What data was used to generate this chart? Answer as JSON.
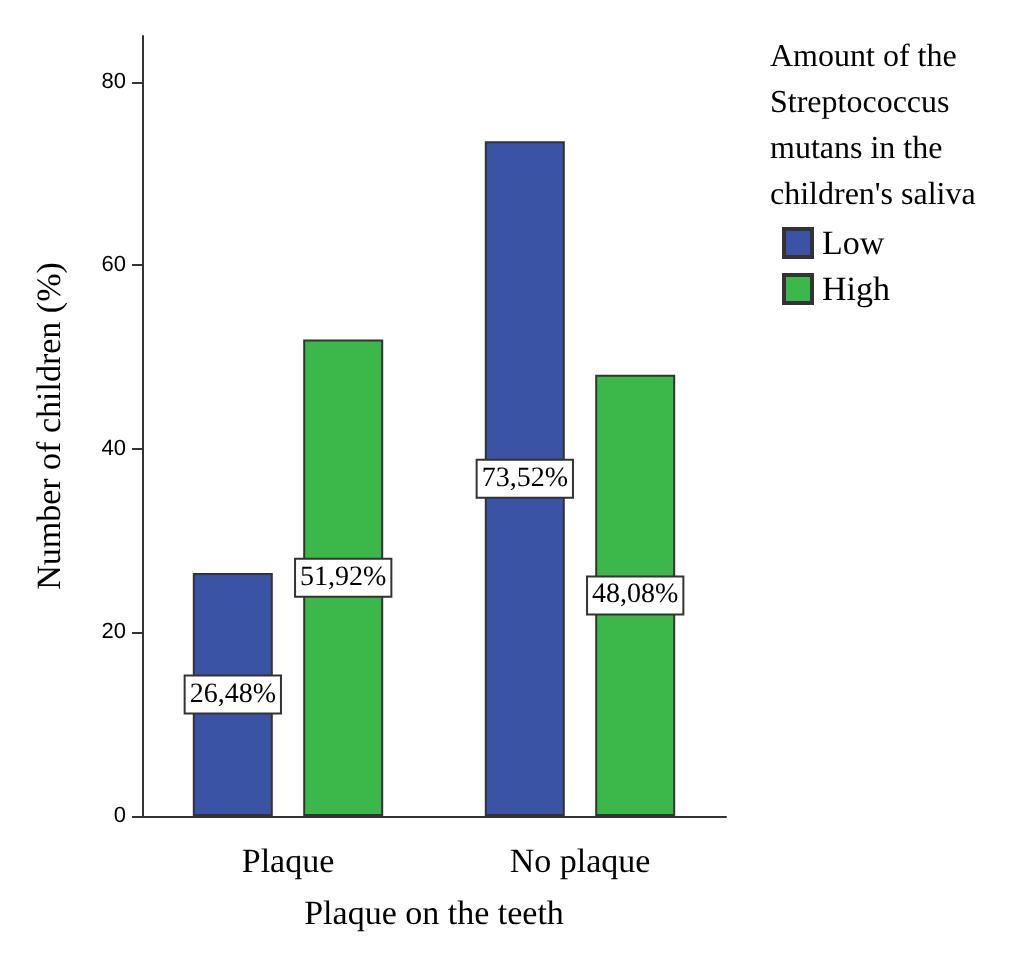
{
  "chart_data": {
    "type": "bar",
    "xlabel": "Plaque on the teeth",
    "ylabel": "Number of children (%)",
    "legend_title": "Amount of the Streptococcus mutans in the children's saliva",
    "categories": [
      "Plaque",
      "No plaque"
    ],
    "series": [
      {
        "name": "Low",
        "color": "#3a53a4",
        "values": [
          26.48,
          73.52
        ],
        "value_labels": [
          "26,48%",
          "73,52%"
        ]
      },
      {
        "name": "High",
        "color": "#3cb84a",
        "values": [
          51.92,
          48.08
        ],
        "value_labels": [
          "51,92%",
          "48,08%"
        ]
      }
    ],
    "ylim": [
      0,
      85
    ],
    "yticks": [
      0,
      20,
      40,
      60,
      80
    ],
    "grid": false,
    "legend": "right"
  }
}
